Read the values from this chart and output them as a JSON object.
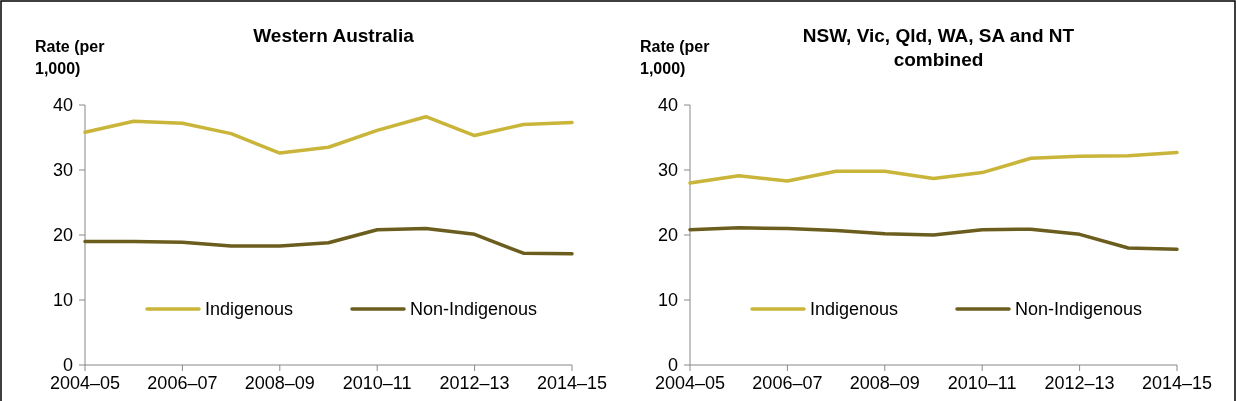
{
  "chart_data": [
    {
      "type": "line",
      "title": "Western Australia",
      "ylabel": "Rate (per 1,000)",
      "categories": [
        "2004–05",
        null,
        "2006–07",
        null,
        "2008–09",
        null,
        "2010–11",
        null,
        "2012–13",
        null,
        "2014–15"
      ],
      "series": [
        {
          "name": "Indigenous",
          "color": "#c9b53a",
          "values": [
            35.8,
            37.5,
            37.2,
            35.6,
            32.6,
            33.5,
            36.1,
            38.2,
            35.3,
            37.0,
            37.3
          ]
        },
        {
          "name": "Non-Indigenous",
          "color": "#6b5d1e",
          "values": [
            19.0,
            19.0,
            18.9,
            18.3,
            18.3,
            18.8,
            20.8,
            21.0,
            20.1,
            17.2,
            17.1
          ]
        }
      ],
      "ylim": [
        0,
        40
      ],
      "yticks": [
        0,
        10,
        20,
        30,
        40
      ],
      "legend": "bottom"
    },
    {
      "type": "line",
      "title": "NSW, Vic, Qld, WA, SA and NT combined",
      "ylabel": "Rate (per 1,000)",
      "categories": [
        "2004–05",
        null,
        "2006–07",
        null,
        "2008–09",
        null,
        "2010–11",
        null,
        "2012–13",
        null,
        "2014–15"
      ],
      "series": [
        {
          "name": "Indigenous",
          "color": "#c9b53a",
          "values": [
            28.0,
            29.1,
            28.3,
            29.8,
            29.8,
            28.7,
            29.6,
            31.8,
            32.1,
            32.2,
            32.7
          ]
        },
        {
          "name": "Non-Indigenous",
          "color": "#6b5d1e",
          "values": [
            20.8,
            21.1,
            21.0,
            20.7,
            20.2,
            20.0,
            20.8,
            20.9,
            20.1,
            18.0,
            17.8
          ]
        }
      ],
      "ylim": [
        0,
        40
      ],
      "yticks": [
        0,
        10,
        20,
        30,
        40
      ],
      "legend": "bottom"
    }
  ]
}
